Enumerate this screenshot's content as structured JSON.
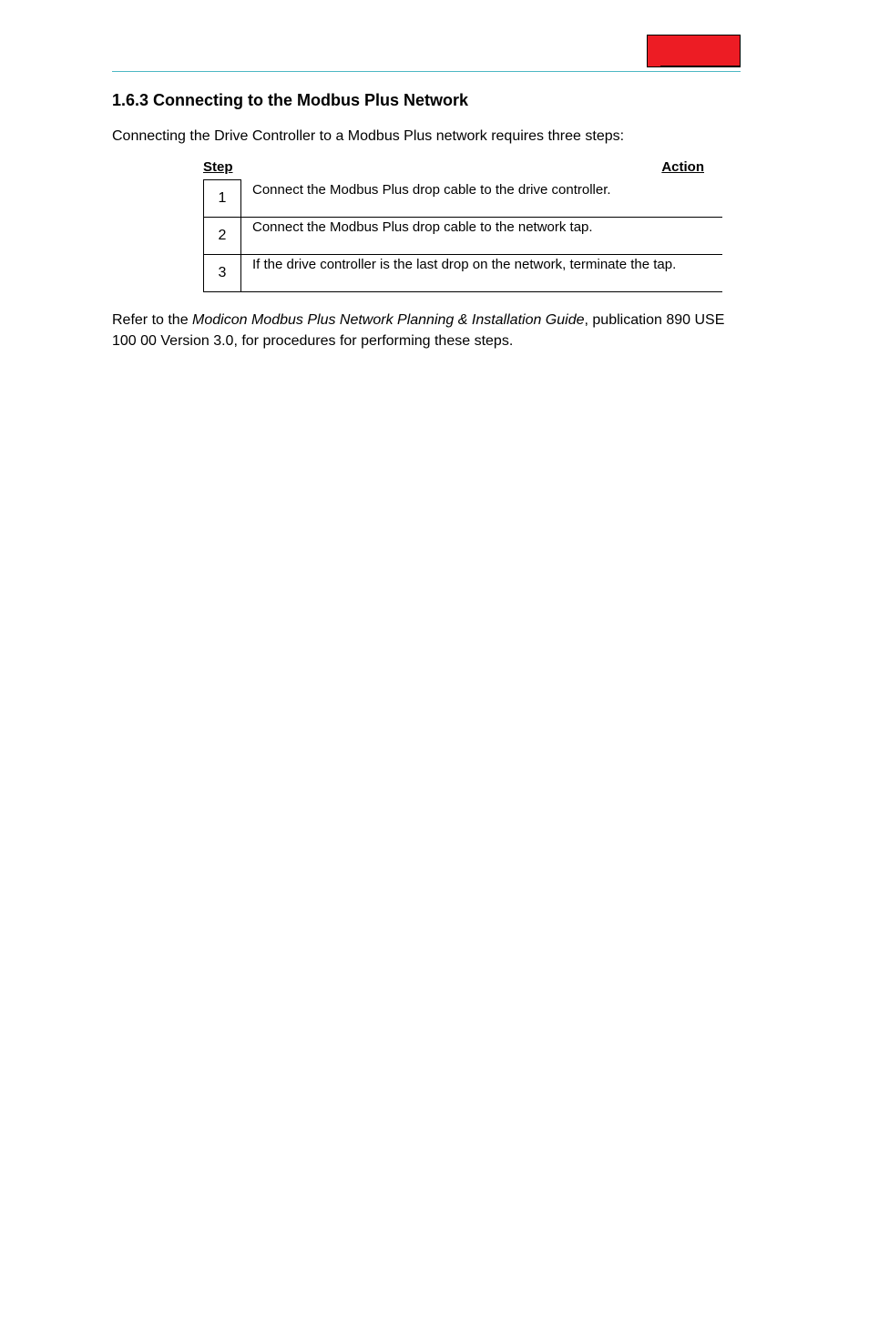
{
  "redbox": {},
  "heading": "1.6.3         Connecting to the Modbus Plus Network",
  "intro": "Connecting the Drive Controller to a Modbus Plus network requires three steps:",
  "table": {
    "header_step": "Step",
    "header_action": "Action",
    "rows": [
      {
        "step": "1",
        "action": "Connect the Modbus Plus drop cable to the drive controller."
      },
      {
        "step": "2",
        "action": "Connect the Modbus Plus drop cable to the network tap."
      },
      {
        "step": "3",
        "action": "If the drive controller is the last drop on the network, terminate the tap."
      }
    ]
  },
  "footer": {
    "prefix": "Refer to the ",
    "italic": "Modicon Modbus Plus Network Planning & Installation Guide",
    "suffix1": ", publication 890 USE 100 00 Version 3.0, for",
    "suffix2": "procedures for performing these steps."
  }
}
